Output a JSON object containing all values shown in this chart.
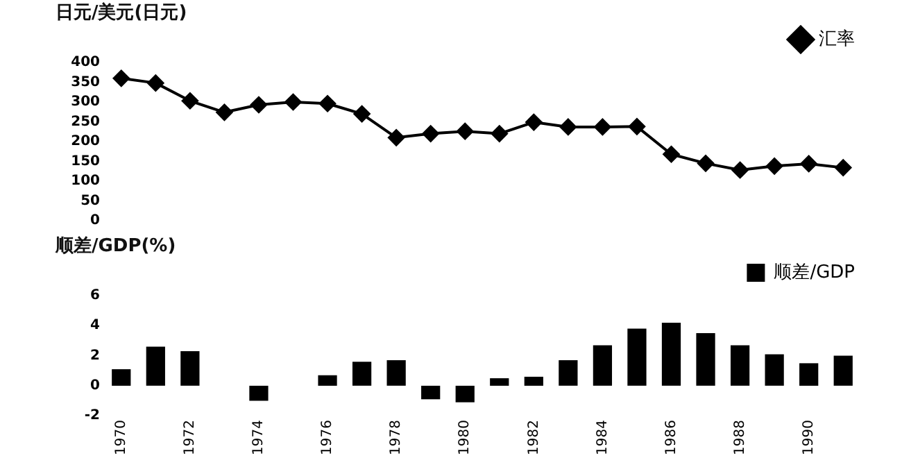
{
  "chart_data": [
    {
      "type": "line",
      "ylabel": "日元/美元(日元)",
      "categories": [
        "1970",
        null,
        "1972",
        null,
        "1974",
        null,
        "1976",
        null,
        "1978",
        null,
        "1980",
        null,
        "1982",
        null,
        "1984",
        null,
        "1986",
        null,
        "1988",
        null,
        "1990",
        null
      ],
      "series": [
        {
          "name": "汇率",
          "color": "#000000",
          "values": [
            360,
            348,
            303,
            274,
            293,
            300,
            296,
            270,
            210,
            220,
            226,
            220,
            249,
            237,
            237,
            238,
            168,
            145,
            128,
            138,
            144,
            134
          ]
        }
      ],
      "ylim": [
        0,
        400
      ],
      "yticks": [
        0,
        50,
        100,
        150,
        200,
        250,
        300,
        350,
        400
      ],
      "tick_labels": "y",
      "marker": "diamond",
      "line_style": "solid",
      "legend": "top right",
      "grid": false
    },
    {
      "type": "bar",
      "ylabel": "顺差/GDP(%)",
      "categories": [
        "1970",
        null,
        "1972",
        null,
        "1974",
        null,
        "1976",
        null,
        "1978",
        null,
        "1980",
        null,
        "1982",
        null,
        "1984",
        null,
        "1986",
        null,
        "1988",
        null,
        "1990",
        null
      ],
      "series": [
        {
          "name": "顺差/GDP",
          "color": "#000000",
          "values": [
            1.1,
            2.6,
            2.3,
            null,
            -1.0,
            null,
            0.7,
            1.6,
            1.7,
            -0.9,
            -1.1,
            0.5,
            0.6,
            1.7,
            2.7,
            3.8,
            4.2,
            3.5,
            2.7,
            2.1,
            1.5,
            2.0
          ]
        }
      ],
      "ylim": [
        -2,
        6
      ],
      "yticks": [
        -2,
        0,
        2,
        4,
        6
      ],
      "legend": "top right",
      "grid": false
    }
  ]
}
